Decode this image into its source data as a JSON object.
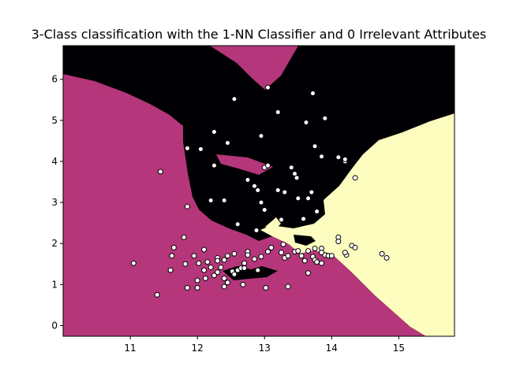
{
  "chart_data": {
    "type": "scatter",
    "title": "3-Class classification with the 1-NN Classifier and 0 Irrelevant Attributes",
    "xlabel": "",
    "ylabel": "",
    "xlim": [
      10.0,
      15.83
    ],
    "ylim": [
      -0.26,
      6.82
    ],
    "x_ticks": [
      11,
      12,
      13,
      14,
      15
    ],
    "y_ticks": [
      0,
      1,
      2,
      3,
      4,
      5,
      6
    ],
    "grid": false,
    "legend": "none",
    "colors": {
      "class_0_region": "#b5367a",
      "class_1_region": "#000004",
      "class_2_region": "#fcfdbf",
      "point_fill": "#ffffff",
      "point_edge": "#000000"
    },
    "points": [
      [
        11.45,
        3.75
      ],
      [
        11.85,
        4.32
      ],
      [
        12.05,
        4.3
      ],
      [
        12.25,
        4.72
      ],
      [
        12.45,
        4.45
      ],
      [
        12.55,
        5.52
      ],
      [
        13.05,
        5.8
      ],
      [
        13.2,
        5.2
      ],
      [
        13.62,
        4.95
      ],
      [
        13.72,
        5.66
      ],
      [
        13.9,
        5.05
      ],
      [
        12.95,
        4.62
      ],
      [
        13.75,
        4.37
      ],
      [
        13.85,
        4.12
      ],
      [
        14.1,
        4.1
      ],
      [
        14.2,
        4.0
      ],
      [
        14.2,
        4.05
      ],
      [
        14.35,
        3.6
      ],
      [
        12.25,
        3.9
      ],
      [
        13.0,
        3.85
      ],
      [
        13.05,
        3.9
      ],
      [
        13.4,
        3.85
      ],
      [
        13.45,
        3.7
      ],
      [
        13.48,
        3.6
      ],
      [
        12.4,
        3.05
      ],
      [
        12.2,
        3.05
      ],
      [
        11.85,
        2.9
      ],
      [
        12.85,
        3.4
      ],
      [
        12.9,
        3.3
      ],
      [
        12.75,
        3.55
      ],
      [
        13.2,
        3.3
      ],
      [
        13.3,
        3.25
      ],
      [
        13.5,
        3.1
      ],
      [
        13.65,
        3.1
      ],
      [
        13.7,
        3.25
      ],
      [
        13.78,
        2.78
      ],
      [
        12.95,
        3.0
      ],
      [
        13.0,
        2.82
      ],
      [
        13.25,
        2.58
      ],
      [
        13.58,
        2.6
      ],
      [
        12.6,
        2.47
      ],
      [
        12.88,
        2.32
      ],
      [
        11.8,
        2.15
      ],
      [
        11.95,
        1.7
      ],
      [
        12.1,
        1.85
      ],
      [
        11.65,
        1.9
      ],
      [
        11.62,
        1.7
      ],
      [
        12.15,
        1.55
      ],
      [
        12.3,
        1.65
      ],
      [
        12.45,
        1.7
      ],
      [
        12.4,
        1.6
      ],
      [
        12.3,
        1.58
      ],
      [
        12.55,
        1.75
      ],
      [
        12.75,
        1.8
      ],
      [
        12.75,
        1.72
      ],
      [
        12.95,
        1.68
      ],
      [
        11.05,
        1.52
      ],
      [
        11.82,
        1.5
      ],
      [
        12.02,
        1.52
      ],
      [
        12.1,
        1.35
      ],
      [
        12.2,
        1.42
      ],
      [
        12.3,
        1.3
      ],
      [
        12.35,
        1.42
      ],
      [
        12.12,
        1.15
      ],
      [
        12.0,
        1.1
      ],
      [
        11.6,
        1.35
      ],
      [
        12.25,
        1.22
      ],
      [
        12.4,
        1.15
      ],
      [
        12.45,
        1.05
      ],
      [
        12.4,
        0.95
      ],
      [
        12.52,
        1.32
      ],
      [
        12.6,
        1.35
      ],
      [
        12.65,
        1.4
      ],
      [
        12.7,
        1.52
      ],
      [
        12.7,
        1.4
      ],
      [
        12.85,
        1.62
      ],
      [
        12.55,
        1.25
      ],
      [
        12.9,
        1.35
      ],
      [
        12.68,
        1.0
      ],
      [
        11.85,
        0.92
      ],
      [
        12.0,
        0.92
      ],
      [
        11.4,
        0.75
      ],
      [
        13.02,
        0.92
      ],
      [
        13.35,
        0.95
      ],
      [
        13.05,
        1.8
      ],
      [
        13.1,
        1.9
      ],
      [
        13.25,
        1.78
      ],
      [
        13.3,
        1.65
      ],
      [
        13.28,
        1.98
      ],
      [
        13.35,
        1.7
      ],
      [
        13.45,
        1.8
      ],
      [
        13.5,
        1.82
      ],
      [
        13.55,
        1.7
      ],
      [
        13.6,
        1.58
      ],
      [
        13.65,
        1.28
      ],
      [
        13.65,
        1.82
      ],
      [
        13.72,
        1.68
      ],
      [
        13.75,
        1.6
      ],
      [
        13.78,
        1.55
      ],
      [
        13.75,
        1.88
      ],
      [
        13.85,
        1.52
      ],
      [
        13.85,
        1.88
      ],
      [
        13.9,
        1.72
      ],
      [
        13.95,
        1.7
      ],
      [
        13.85,
        1.78
      ],
      [
        14.0,
        1.7
      ],
      [
        14.1,
        2.15
      ],
      [
        14.1,
        2.05
      ],
      [
        14.22,
        1.72
      ],
      [
        14.2,
        1.78
      ],
      [
        14.3,
        1.95
      ],
      [
        14.35,
        1.9
      ],
      [
        14.75,
        1.75
      ],
      [
        14.82,
        1.65
      ]
    ]
  }
}
